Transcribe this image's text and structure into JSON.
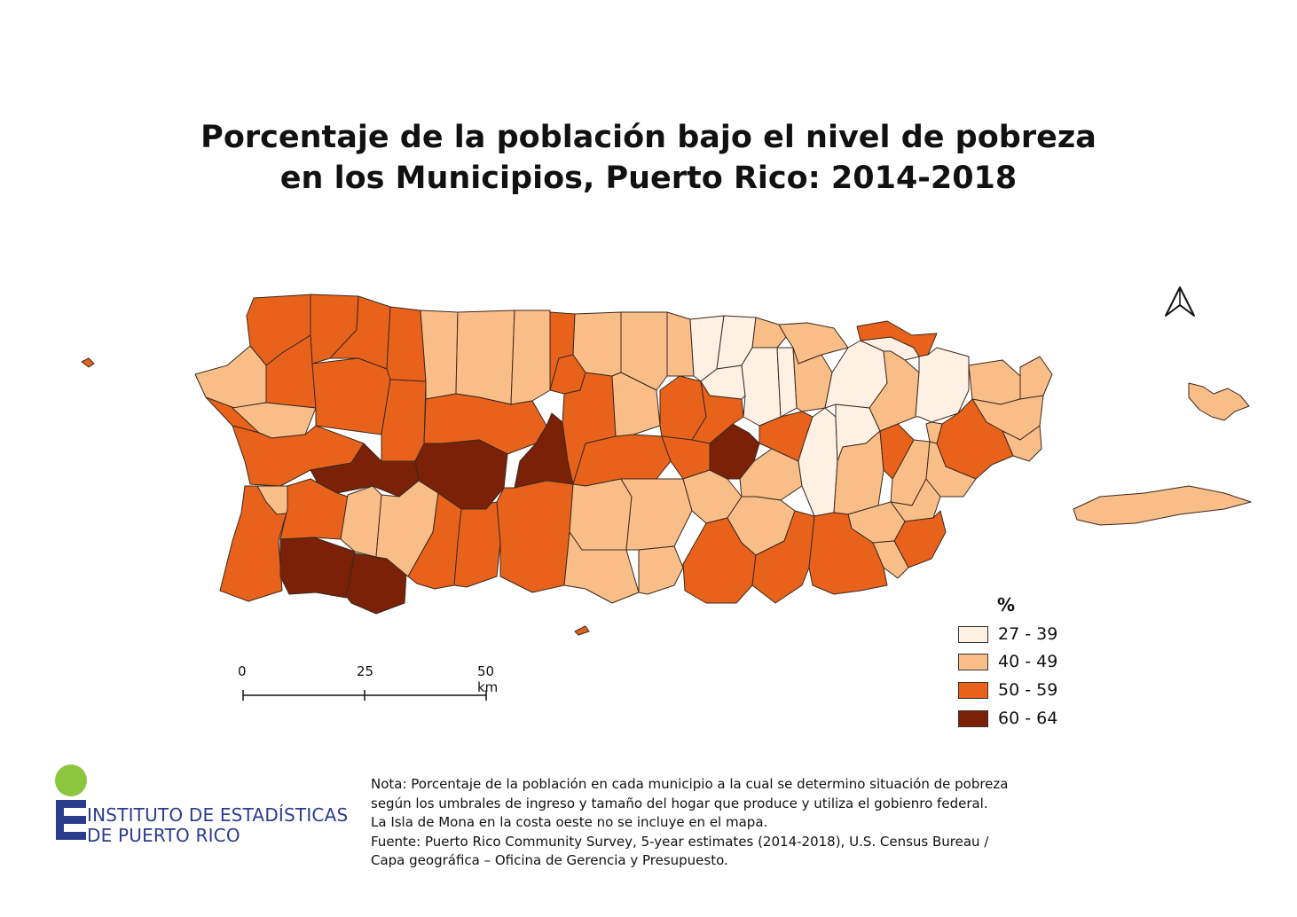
{
  "title": {
    "line1": "Porcentaje de la población bajo el nivel de pobreza",
    "line2": "en los Municipios, Puerto Rico: 2014-2018"
  },
  "map": {
    "north_arrow_icon": "north-arrow-icon",
    "classes": [
      {
        "label": "27 - 39",
        "color": "#fef0e3"
      },
      {
        "label": "40 - 49",
        "color": "#f9bd87"
      },
      {
        "label": "50 - 59",
        "color": "#e8621b"
      },
      {
        "label": "60 - 64",
        "color": "#7a2108"
      }
    ],
    "border_color": "#3a2a20"
  },
  "scale_bar": {
    "labels": [
      "0",
      "25",
      "50 km"
    ]
  },
  "legend": {
    "title": "%",
    "items": [
      {
        "label": "27 - 39",
        "color": "#fef0e3"
      },
      {
        "label": "40 - 49",
        "color": "#f9bd87"
      },
      {
        "label": "50 - 59",
        "color": "#e8621b"
      },
      {
        "label": "60 - 64",
        "color": "#7a2108"
      }
    ]
  },
  "logo": {
    "line1": "INSTITUTO DE ESTADÍSTICAS",
    "line2": "DE PUERTO RICO",
    "colors": {
      "dot": "#8cc63f",
      "text": "#2b3c8c"
    }
  },
  "note": {
    "lines": [
      "Nota: Porcentaje de la población en cada municipio a la cual se determino situación de pobreza",
      "según los umbrales de ingreso y tamaño del hogar que produce y utiliza el gobienro federal.",
      "La Isla de Mona en la costa oeste no se incluye en el mapa.",
      "Fuente: Puerto Rico Community Survey, 5-year estimates (2014-2018), U.S. Census Bureau /",
      "Capa geográfica – Oficina de Gerencia y Presupuesto."
    ]
  }
}
